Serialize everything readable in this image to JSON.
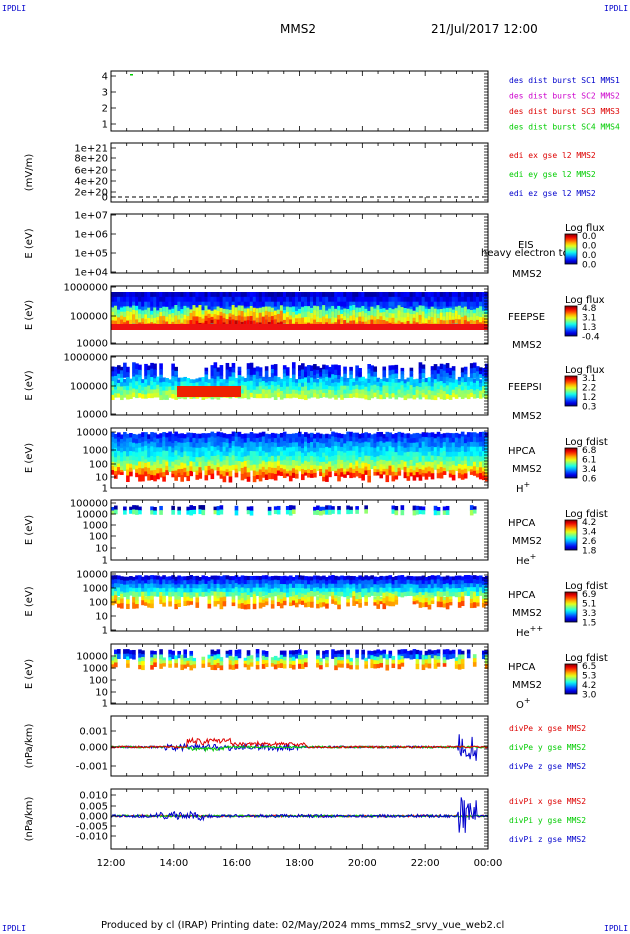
{
  "header": {
    "corner_label": "IPDLI",
    "spacecraft": "MMS2",
    "datetime": "21/Jul/2017 12:00"
  },
  "footer": {
    "text": "Produced by cl (IRAP)   Printing date: 02/May/2024   mms_mms2_srvy_vue_web2.cl"
  },
  "colors": {
    "red": "#dd0000",
    "green": "#00cc00",
    "blue": "#0000cc",
    "magenta": "#cc00cc"
  },
  "chart_data": [
    {
      "type": "line",
      "id": "p1",
      "yticks": [
        "4",
        "3",
        "2",
        "1"
      ],
      "legend": [
        {
          "text": "des dist burst SC1 MMS1",
          "color": "#0000cc"
        },
        {
          "text": "des dist burst SC2 MMS2",
          "color": "#cc00cc"
        },
        {
          "text": "des dist burst SC3 MMS3",
          "color": "#dd0000"
        },
        {
          "text": "des dist burst SC4 MMS4",
          "color": "#00cc00"
        }
      ]
    },
    {
      "type": "line",
      "id": "p2",
      "ylabel": "(mV/m)",
      "yticks": [
        "1e+21",
        "8e+20",
        "6e+20",
        "4e+20",
        "2e+20",
        "0"
      ],
      "legend": [
        {
          "text": "edi ex gse l2 MMS2",
          "color": "#dd0000"
        },
        {
          "text": "edi ey gse l2 MMS2",
          "color": "#00cc00"
        },
        {
          "text": "edi ez gse l2 MMS2",
          "color": "#0000cc"
        }
      ]
    },
    {
      "type": "heatmap",
      "id": "p3",
      "ylabel": "E (eV)",
      "yticks": [
        "1e+07",
        "1e+06",
        "1e+05",
        "1e+04"
      ],
      "instrument": "EIS",
      "overlay": "heavy electron to",
      "spacecraft": "MMS2",
      "colorbar": {
        "title": "Log flux",
        "values": [
          "0.0",
          "0.0",
          "0.0",
          "0.0"
        ]
      }
    },
    {
      "type": "heatmap",
      "id": "p4",
      "ylabel": "E (eV)",
      "yticks": [
        "1000000",
        "100000",
        "10000"
      ],
      "instrument": "FEEPSE",
      "spacecraft": "MMS2",
      "colorbar": {
        "title": "Log flux",
        "values": [
          "4.8",
          "3.1",
          "1.3",
          "-0.4"
        ]
      }
    },
    {
      "type": "heatmap",
      "id": "p5",
      "ylabel": "E (eV)",
      "yticks": [
        "1000000",
        "100000",
        "10000"
      ],
      "instrument": "FEEPSI",
      "spacecraft": "MMS2",
      "colorbar": {
        "title": "Log flux",
        "values": [
          "3.1",
          "2.2",
          "1.2",
          "0.3"
        ]
      }
    },
    {
      "type": "heatmap",
      "id": "p6",
      "ylabel": "E (eV)",
      "yticks": [
        "10000",
        "1000",
        "100",
        "10",
        "1"
      ],
      "instrument": "HPCA",
      "spacecraft": "MMS2",
      "species": "H",
      "species_sup": "+",
      "colorbar": {
        "title": "Log fdist",
        "values": [
          "6.8",
          "6.1",
          "3.4",
          "0.6"
        ]
      }
    },
    {
      "type": "heatmap",
      "id": "p7",
      "ylabel": "E (eV)",
      "yticks": [
        "100000",
        "10000",
        "1000",
        "100",
        "10",
        "1"
      ],
      "instrument": "HPCA",
      "spacecraft": "MMS2",
      "species": "He",
      "species_sup": "+",
      "colorbar": {
        "title": "Log fdist",
        "values": [
          "4.2",
          "3.4",
          "2.6",
          "1.8"
        ]
      }
    },
    {
      "type": "heatmap",
      "id": "p8",
      "ylabel": "E (eV)",
      "yticks": [
        "10000",
        "1000",
        "100",
        "10",
        "1"
      ],
      "instrument": "HPCA",
      "spacecraft": "MMS2",
      "species": "He",
      "species_sup": "++",
      "colorbar": {
        "title": "Log fdist",
        "values": [
          "6.9",
          "5.1",
          "3.3",
          "1.5"
        ]
      }
    },
    {
      "type": "heatmap",
      "id": "p9",
      "ylabel": "E (eV)",
      "yticks": [
        "10000",
        "1000",
        "100",
        "10",
        "1"
      ],
      "instrument": "HPCA",
      "spacecraft": "MMS2",
      "species": "O",
      "species_sup": "+",
      "colorbar": {
        "title": "Log fdist",
        "values": [
          "6.5",
          "5.3",
          "4.2",
          "3.0"
        ]
      }
    },
    {
      "type": "line",
      "id": "p10",
      "ylabel": "(nPa/km)",
      "yticks": [
        "0.001",
        "0.000",
        "-0.001"
      ],
      "legend": [
        {
          "text": "divPe x gse MMS2",
          "color": "#dd0000"
        },
        {
          "text": "divPe y gse MMS2",
          "color": "#00cc00"
        },
        {
          "text": "divPe z gse MMS2",
          "color": "#0000cc"
        }
      ]
    },
    {
      "type": "line",
      "id": "p11",
      "ylabel": "(nPa/km)",
      "yticks": [
        "0.010",
        "0.005",
        "0.000",
        "-0.005",
        "-0.010"
      ],
      "legend": [
        {
          "text": "divPi x gse MMS2",
          "color": "#dd0000"
        },
        {
          "text": "divPi y gse MMS2",
          "color": "#00cc00"
        },
        {
          "text": "divPi z gse MMS2",
          "color": "#0000cc"
        }
      ]
    }
  ],
  "time_axis": {
    "ticks": [
      "12:00",
      "14:00",
      "16:00",
      "18:00",
      "20:00",
      "22:00",
      "00:00"
    ]
  }
}
